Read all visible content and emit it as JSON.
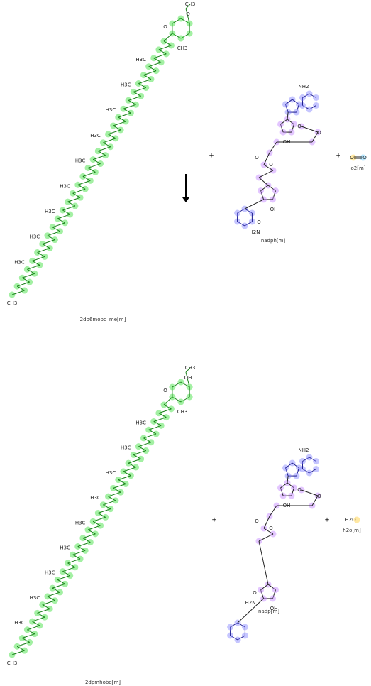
{
  "reaction": {
    "top": {
      "molecules": [
        {
          "name": "2dp6mobq_me[m]",
          "atoms": [
            "CH3",
            "O",
            "O",
            "CH3",
            "H3C",
            "H3C",
            "H3C",
            "H3C",
            "H3C",
            "H3C",
            "H3C",
            "H3C",
            "H3C",
            "CH3"
          ]
        },
        {
          "name": "nadph[m]",
          "atoms": [
            "NH2",
            "O",
            "OH",
            "O",
            "O",
            "O",
            "OH",
            "H2N",
            "O"
          ]
        },
        {
          "name": "o2[m]",
          "atoms": [
            "O",
            "O"
          ]
        }
      ],
      "operators": [
        "+",
        "+"
      ]
    },
    "bottom": {
      "molecules": [
        {
          "name": "2dpmhobq[m]",
          "atoms": [
            "CH3",
            "OH",
            "O",
            "CH3",
            "H3C",
            "H3C",
            "H3C",
            "H3C",
            "H3C",
            "H3C",
            "H3C",
            "H3C",
            "H3C",
            "CH3"
          ]
        },
        {
          "name": "nadp[m]",
          "atoms": [
            "NH2",
            "O",
            "OH",
            "O",
            "O",
            "O",
            "OH",
            "H2N",
            "O"
          ]
        },
        {
          "name": "h2o[m]",
          "atoms": [
            "H2O"
          ]
        }
      ],
      "operators": [
        "+",
        "+"
      ]
    }
  }
}
